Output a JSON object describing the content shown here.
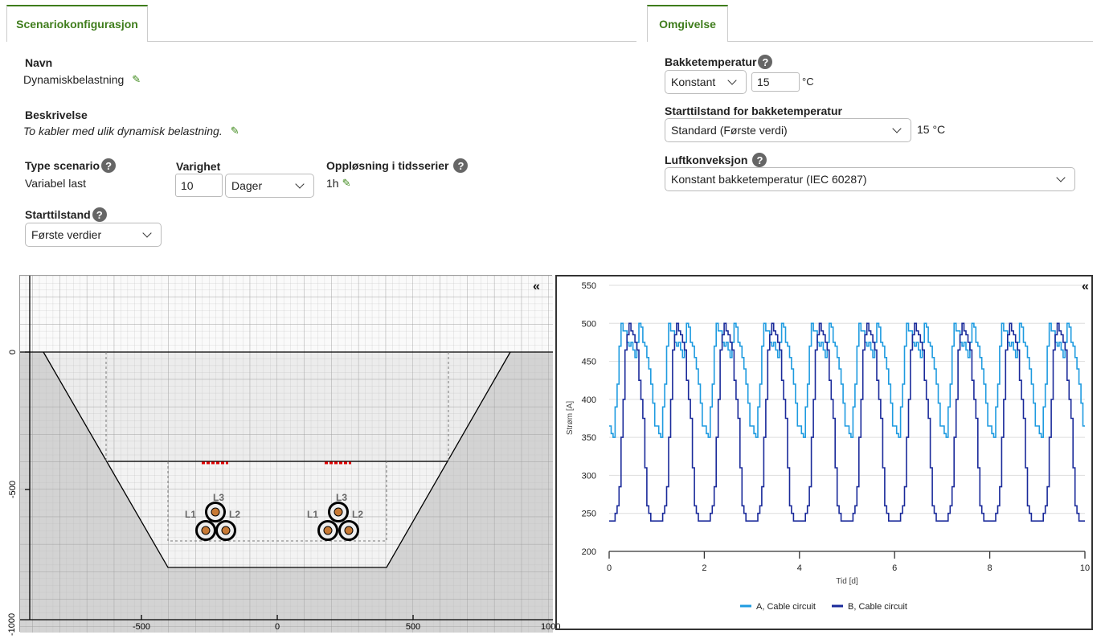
{
  "left_tab": {
    "label": "Scenariokonfigurasjon"
  },
  "right_tab": {
    "label": "Omgivelse"
  },
  "scenario": {
    "name_label": "Navn",
    "name_value": "Dynamiskbelastning",
    "description_label": "Beskrivelse",
    "description_value": "To kabler med ulik dynamisk belastning.",
    "type_label": "Type scenario",
    "type_value": "Variabel last",
    "duration_label": "Varighet",
    "duration_value": "10",
    "duration_unit": "Dager",
    "resolution_label": "Oppløsning i tidsserier",
    "resolution_value": "1h",
    "start_state_label": "Starttilstand",
    "start_state_value": "Første verdier"
  },
  "environment": {
    "ground_temp_label": "Bakketemperatur",
    "ground_temp_mode": "Konstant",
    "ground_temp_value": "15",
    "ground_temp_unit": "°C",
    "ground_start_label": "Starttilstand for bakketemperatur",
    "ground_start_value": "Standard (Første verdi)",
    "ground_start_readout": "15 °C",
    "air_convection_label": "Luftkonveksjon",
    "air_convection_value": "Konstant bakketemperatur (IEC 60287)"
  },
  "cross_section": {
    "collapse_icon": "«",
    "y_ticks": [
      "0",
      "-500",
      "-1000"
    ],
    "x_ticks": [
      "-500",
      "0",
      "500",
      "1000"
    ],
    "cable_labels": [
      "L1",
      "L2",
      "L3"
    ],
    "colors": {
      "conductor": "#c87a35",
      "marker": "#e00000"
    }
  },
  "chart_collapse_icon": "«",
  "chart_data": {
    "type": "line",
    "xlabel": "Tid [d]",
    "ylabel": "Strøm [A]",
    "xlim": [
      0,
      10
    ],
    "ylim": [
      200,
      550
    ],
    "x_ticks": [
      0,
      2,
      4,
      6,
      8,
      10
    ],
    "y_ticks": [
      200,
      250,
      300,
      350,
      400,
      450,
      500,
      550
    ],
    "grid": true,
    "legend_position": "bottom",
    "step_hours": 1,
    "repeat_days": 10,
    "series": [
      {
        "name": "A, Cable circuit",
        "color": "#1e9be0",
        "daily_profile": [
          365,
          355,
          350,
          390,
          420,
          470,
          500,
          490,
          490,
          475,
          470,
          475,
          465,
          455,
          475,
          500,
          495,
          475,
          470,
          455,
          440,
          420,
          395,
          365
        ]
      },
      {
        "name": "B, Cable circuit",
        "color": "#1a2a9a",
        "daily_profile": [
          240,
          240,
          240,
          250,
          260,
          285,
          350,
          400,
          465,
          485,
          500,
          490,
          485,
          475,
          465,
          425,
          400,
          375,
          310,
          260,
          250,
          240,
          240,
          240
        ]
      }
    ]
  }
}
